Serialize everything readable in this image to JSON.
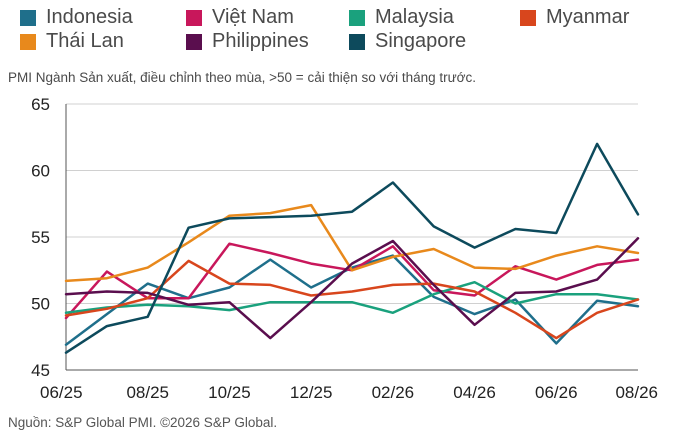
{
  "chart_data": {
    "type": "line",
    "subtitle": "PMI Ngành Sản xuất, điều chỉnh theo mùa, >50 = cải thiện so với tháng trước.",
    "source": "Nguồn: S&P Global PMI. ©2026 S&P Global.",
    "x": [
      "06/25",
      "07/25",
      "08/25",
      "09/25",
      "10/25",
      "11/25",
      "12/25",
      "01/26",
      "02/26",
      "03/26",
      "04/26",
      "05/26",
      "06/26",
      "07/26",
      "08/26"
    ],
    "x_tick_labels": [
      "06/25",
      "08/25",
      "10/25",
      "12/25",
      "02/26",
      "04/26",
      "06/26",
      "08/26"
    ],
    "ylim": [
      45,
      65
    ],
    "y_ticks": [
      45,
      50,
      55,
      60,
      65
    ],
    "grid": "horizontal",
    "legend": "top",
    "series": [
      {
        "name": "Indonesia",
        "color": "#1f6f8b",
        "values": [
          46.9,
          49.2,
          51.5,
          50.4,
          51.2,
          53.3,
          51.2,
          52.7,
          53.6,
          50.5,
          49.2,
          50.3,
          47.0,
          50.2,
          49.8
        ]
      },
      {
        "name": "Việt Nam",
        "color": "#c8175b",
        "values": [
          48.9,
          52.4,
          50.4,
          50.4,
          54.5,
          53.8,
          53.0,
          52.5,
          54.3,
          51.0,
          50.6,
          52.8,
          51.8,
          52.9,
          53.3
        ]
      },
      {
        "name": "Malaysia",
        "color": "#1aa17d",
        "values": [
          49.3,
          49.7,
          49.9,
          49.8,
          49.5,
          50.1,
          50.1,
          50.1,
          49.3,
          50.7,
          51.6,
          50.0,
          50.7,
          50.7,
          50.3
        ]
      },
      {
        "name": "Myanmar",
        "color": "#d8461d",
        "values": [
          49.1,
          49.6,
          50.4,
          53.2,
          51.5,
          51.4,
          50.6,
          50.9,
          51.4,
          51.5,
          50.9,
          49.3,
          47.4,
          49.3,
          50.3
        ]
      },
      {
        "name": "Thái Lan",
        "color": "#e8891c",
        "values": [
          51.7,
          51.9,
          52.7,
          54.6,
          56.6,
          56.8,
          57.4,
          52.5,
          53.5,
          54.1,
          52.7,
          52.6,
          53.6,
          54.3,
          53.8
        ]
      },
      {
        "name": "Philippines",
        "color": "#5a0e4e",
        "values": [
          50.7,
          50.9,
          50.8,
          49.9,
          50.1,
          47.4,
          50.1,
          53.0,
          54.7,
          51.4,
          48.4,
          50.8,
          50.9,
          51.8,
          54.9
        ]
      },
      {
        "name": "Singapore",
        "color": "#0d4a5c",
        "values": [
          46.3,
          48.3,
          49.0,
          55.7,
          56.4,
          56.5,
          56.6,
          56.9,
          59.1,
          55.8,
          54.2,
          55.6,
          55.3,
          62.0,
          56.7
        ]
      }
    ]
  }
}
